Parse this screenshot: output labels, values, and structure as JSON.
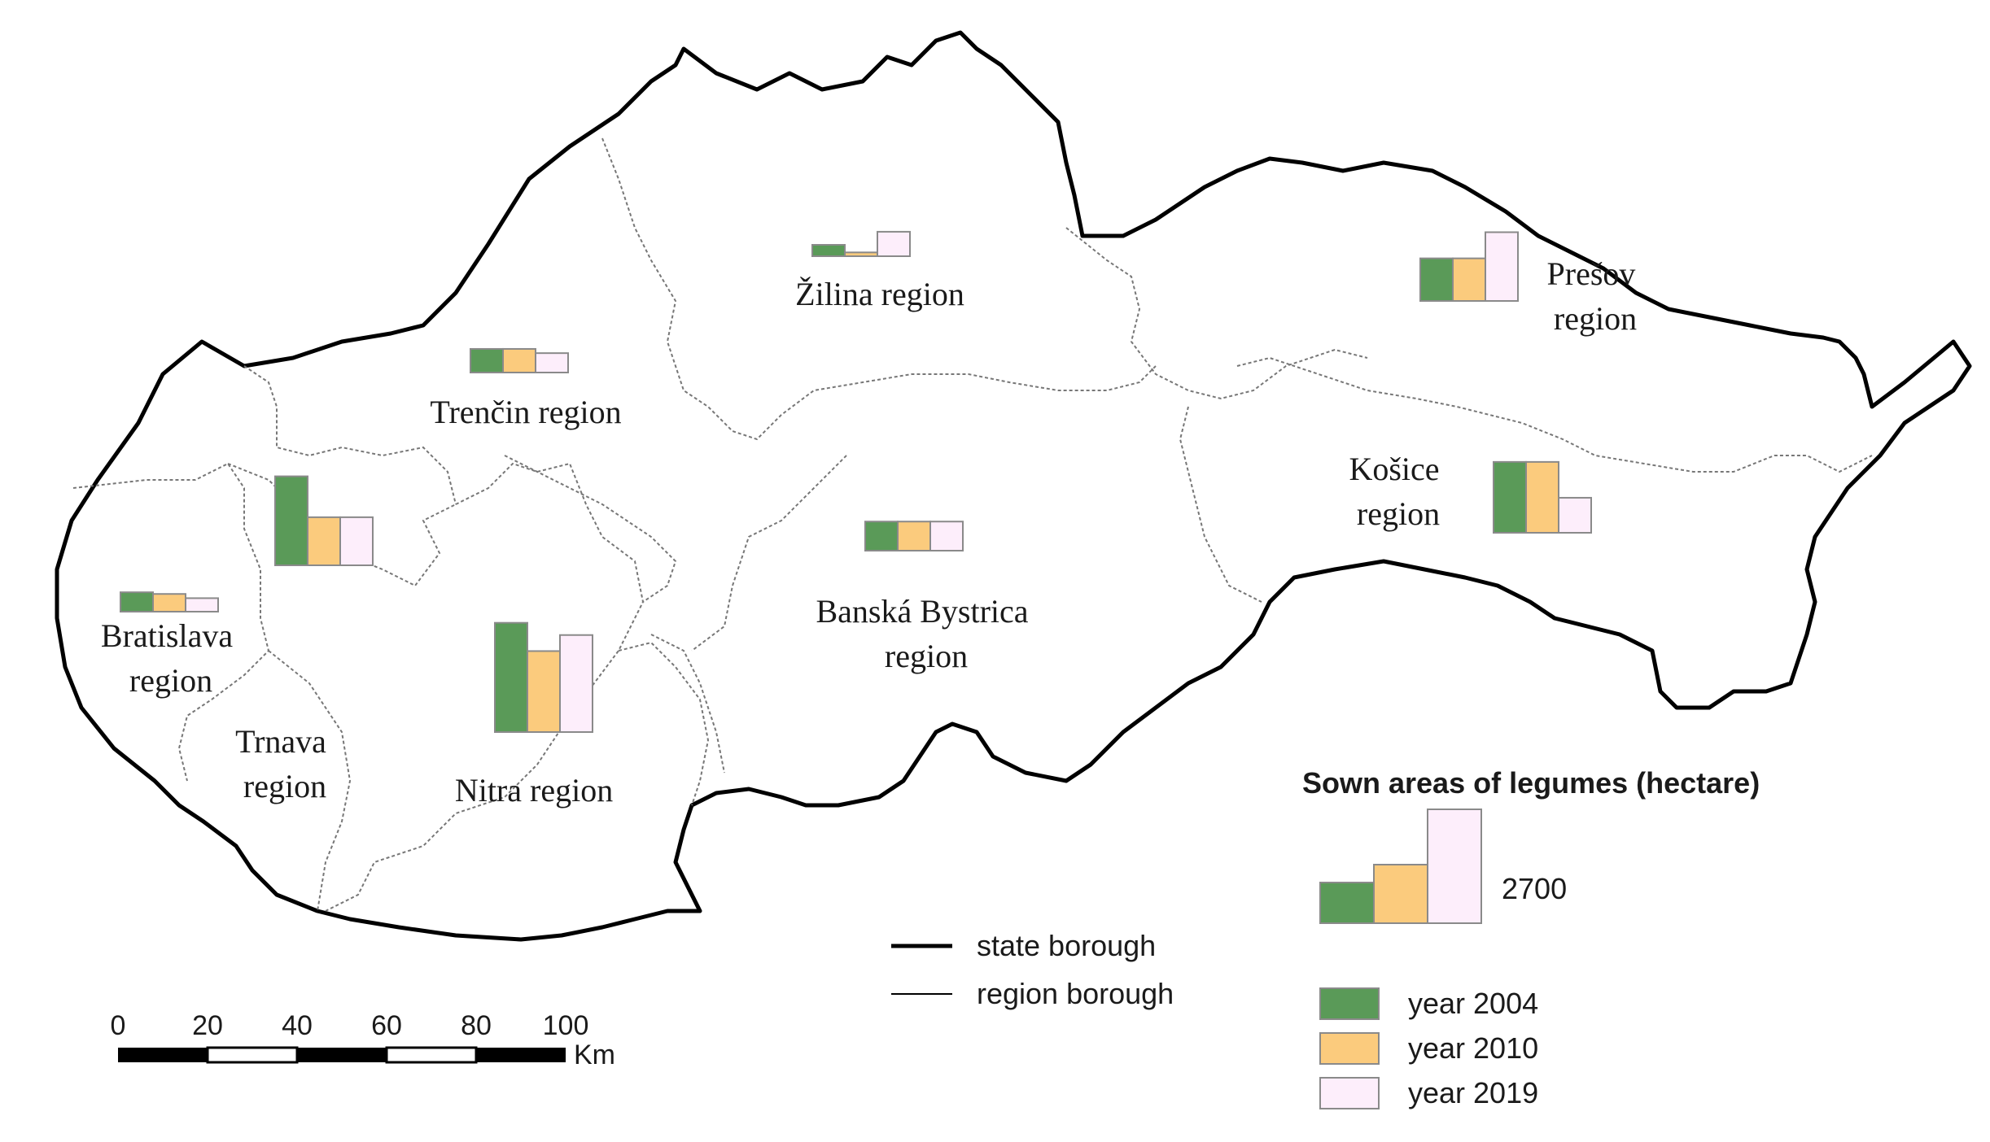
{
  "legend": {
    "title": "Sown areas of legumes (hectare)",
    "reference_value_label": "2700",
    "reference_value": 2700,
    "years": [
      {
        "label": "year 2004",
        "color": "#5a9a58"
      },
      {
        "label": "year 2010",
        "color": "#fbcb7d"
      },
      {
        "label": "year 2019",
        "color": "#fdeefb"
      }
    ]
  },
  "line_legend": {
    "state": "state borough",
    "region": "region borough"
  },
  "scale_bar": {
    "ticks": [
      "0",
      "20",
      "40",
      "60",
      "80",
      "100"
    ],
    "unit": "Km"
  },
  "regions": [
    {
      "id": "bratislava",
      "label_lines": [
        "Bratislava",
        "region"
      ]
    },
    {
      "id": "trnava",
      "label_lines": [
        "Trnava",
        "region"
      ]
    },
    {
      "id": "trencin",
      "label_lines": [
        "Trenčin region"
      ]
    },
    {
      "id": "nitra",
      "label_lines": [
        "Nitra region"
      ]
    },
    {
      "id": "zilina",
      "label_lines": [
        "Žilina region"
      ]
    },
    {
      "id": "banska",
      "label_lines": [
        "Banská Bystrica",
        "region"
      ]
    },
    {
      "id": "presov",
      "label_lines": [
        "Prešov",
        "region"
      ]
    },
    {
      "id": "kosice",
      "label_lines": [
        "Košice",
        "region"
      ]
    }
  ],
  "chart_data": {
    "type": "bar",
    "title": "Sown areas of legumes (hectare)",
    "categories": [
      "Bratislava region",
      "Trnava region",
      "Trenčin region",
      "Nitra region",
      "Žilina region",
      "Banská Bystrica region",
      "Prešov region",
      "Košice region"
    ],
    "series": [
      {
        "name": "year 2004",
        "values": [
          460,
          2110,
          560,
          2590,
          270,
          690,
          1010,
          1680
        ]
      },
      {
        "name": "year 2010",
        "values": [
          420,
          1140,
          560,
          1920,
          90,
          690,
          1010,
          1680
        ]
      },
      {
        "name": "year 2019",
        "values": [
          320,
          1140,
          460,
          2300,
          580,
          690,
          1630,
          830
        ]
      }
    ]
  }
}
